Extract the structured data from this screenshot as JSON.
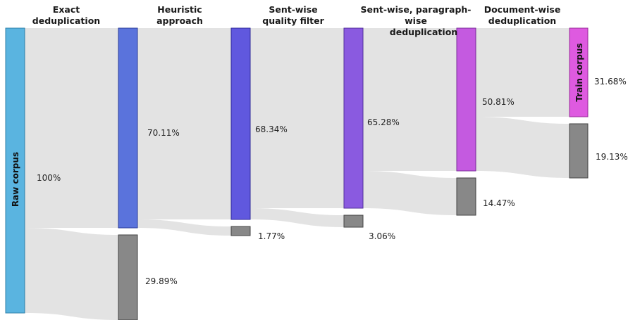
{
  "stages": [
    {
      "line1": "Exact",
      "line2": "deduplication"
    },
    {
      "line1": "Heuristic",
      "line2": "approach"
    },
    {
      "line1": "Sent-wise",
      "line2": "quality filter"
    },
    {
      "line1": "Sent-wise, paragraph-wise",
      "line2": "deduplication"
    },
    {
      "line1": "Document-wise",
      "line2": "deduplication"
    }
  ],
  "nodes": {
    "raw": {
      "label": "Raw corpus",
      "value": "100%"
    },
    "kept1": {
      "value": "70.11%"
    },
    "removed1": {
      "value": "29.89%"
    },
    "kept2": {
      "value": "68.34%"
    },
    "removed2": {
      "value": "1.77%"
    },
    "kept3": {
      "value": "65.28%"
    },
    "removed3": {
      "value": "3.06%"
    },
    "kept4": {
      "value": "50.81%"
    },
    "removed4": {
      "value": "14.47%"
    },
    "train": {
      "label": "Train corpus",
      "value": "31.68%"
    },
    "removed5": {
      "value": "19.13%"
    }
  },
  "colors": {
    "raw": "#5ab4e0",
    "kept1": "#5a73dc",
    "kept2": "#6058de",
    "kept3": "#8a5ae0",
    "kept4": "#c45ae0",
    "train": "#de5ae0",
    "removed": "#888888",
    "link": "#e3e3e3"
  }
}
